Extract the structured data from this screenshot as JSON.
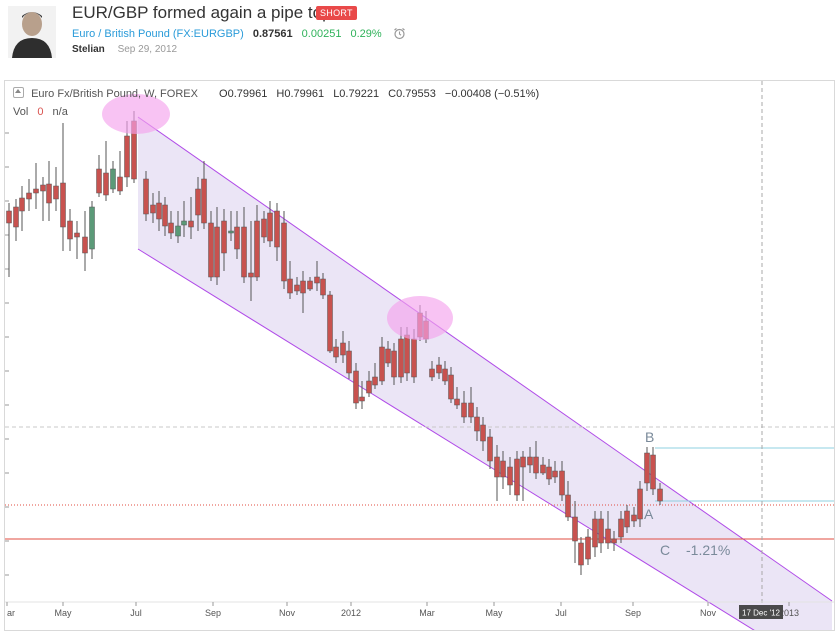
{
  "idea": {
    "title": "EUR/GBP formed again a pipe top.",
    "badge": "SHORT",
    "symbol_link": "Euro / British Pound (FX:EURGBP)",
    "price": "0.87561",
    "change": "0.00251",
    "change_pct": "0.29%",
    "author": "Stelian",
    "date": "Sep 29, 2012"
  },
  "legend": {
    "symbol": "Euro Fx/British Pound, W, FOREX",
    "open": "O0.79961",
    "high": "H0.79961",
    "low": "L0.79221",
    "close": "C0.79553",
    "change": "−0.00408 (−0.51%)",
    "vol_label": "Vol",
    "vol_value": "0",
    "vol_na": "n/a"
  },
  "annotations": {
    "label_a": "A",
    "label_b": "B",
    "label_c": "C",
    "pct": "-1.21%"
  },
  "x_axis": {
    "labels": [
      "ar",
      "May",
      "Jul",
      "Sep",
      "Nov",
      "2012",
      "Mar",
      "May",
      "Jul",
      "Sep",
      "Nov",
      "2013"
    ],
    "crosshair_label": "17 Dec '12"
  },
  "colors": {
    "up": "#5b9a78",
    "down": "#c8524f",
    "channel_fill": "#e8e1f5",
    "channel_line": "#b04be8",
    "highlight": "#f5a3ec",
    "accent": "#2a9bd9",
    "short_badge": "#e94949"
  }
}
